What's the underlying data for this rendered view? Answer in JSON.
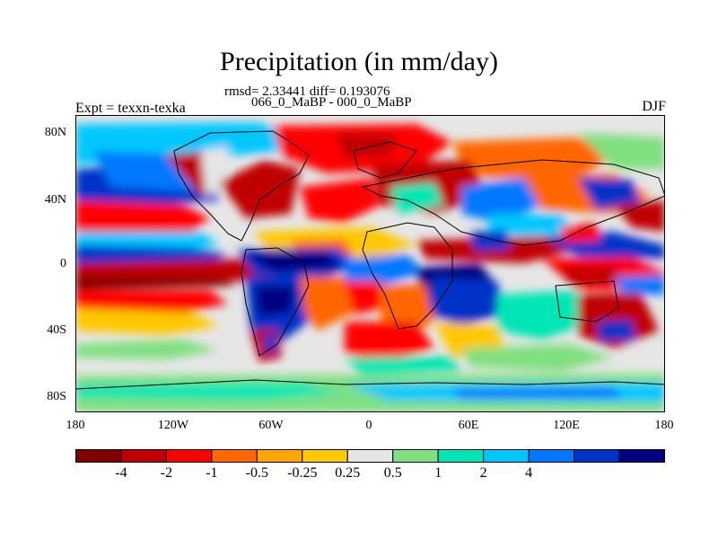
{
  "title": "Precipitation (in mm/day)",
  "stats_line": "rmsd= 2.33441 diff= 0.193076",
  "comparison_line": "066_0_MaBP - 000_0_MaBP",
  "experiment_label": "Expt = texxn-texka",
  "season_label": "DJF",
  "lat_labels": [
    "80N",
    "40N",
    "0",
    "40S",
    "80S"
  ],
  "lon_labels": [
    "180",
    "120W",
    "60W",
    "0",
    "60E",
    "120E",
    "180"
  ],
  "colorbar": {
    "colors": [
      "#800000",
      "#c00000",
      "#ff0000",
      "#ff6600",
      "#ffa500",
      "#ffc800",
      "#e6e6e6",
      "#7fe07f",
      "#00e6b4",
      "#00c8ff",
      "#0078ff",
      "#0032c8",
      "#000080"
    ],
    "labels": [
      "-4",
      "-2",
      "-1",
      "-0.5",
      "-0.25",
      "0.25",
      "0.5",
      "1",
      "2",
      "4"
    ]
  }
}
